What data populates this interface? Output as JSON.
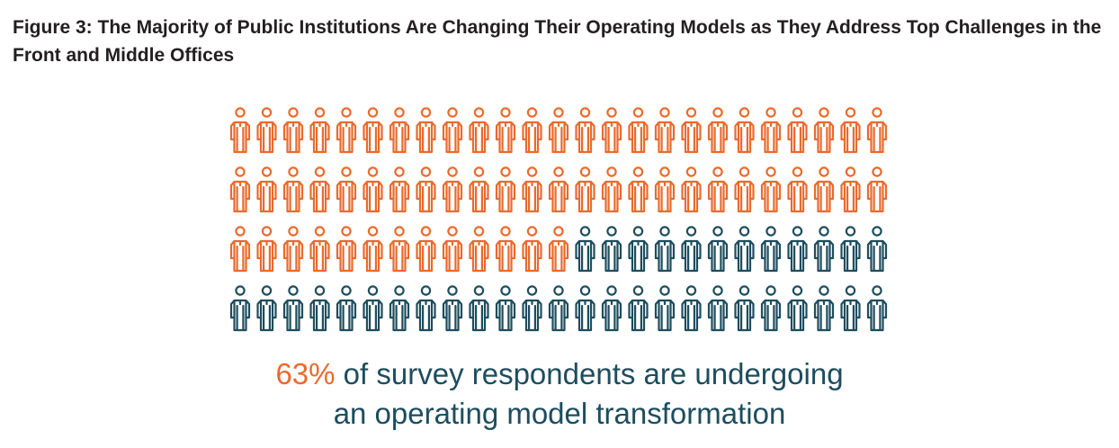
{
  "title": "Figure 3: The Majority of Public Institutions Are Changing Their Operating Models as They Address Top Challenges in the Front and Middle Offices",
  "caption": {
    "highlight": "63%",
    "text_line1": " of survey respondents are undergoing",
    "text_line2": "an operating model transformation"
  },
  "colors": {
    "highlight": "#ea6a2d",
    "base": "#1d4d5e"
  },
  "chart_data": {
    "type": "pictogram",
    "total": 100,
    "rows": 4,
    "per_row": 25,
    "highlighted": 63,
    "highlighted_percent": 63,
    "icon": "person-icon"
  }
}
